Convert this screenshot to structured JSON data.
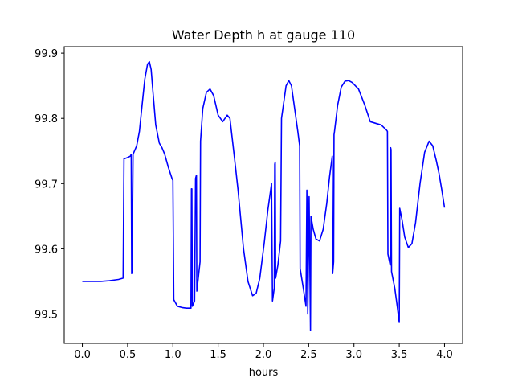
{
  "chart_data": {
    "type": "line",
    "title": "Water Depth h at gauge 110",
    "xlabel": "hours",
    "ylabel": "",
    "xlim": [
      -0.2,
      4.2
    ],
    "ylim": [
      99.455,
      99.91
    ],
    "grid": false,
    "xticks": [
      {
        "value": 0.0,
        "label": "0.0"
      },
      {
        "value": 0.5,
        "label": "0.5"
      },
      {
        "value": 1.0,
        "label": "1.0"
      },
      {
        "value": 1.5,
        "label": "1.5"
      },
      {
        "value": 2.0,
        "label": "2.0"
      },
      {
        "value": 2.5,
        "label": "2.5"
      },
      {
        "value": 3.0,
        "label": "3.0"
      },
      {
        "value": 3.5,
        "label": "3.5"
      },
      {
        "value": 4.0,
        "label": "4.0"
      }
    ],
    "yticks": [
      {
        "value": 99.5,
        "label": "99.5"
      },
      {
        "value": 99.6,
        "label": "99.6"
      },
      {
        "value": 99.7,
        "label": "99.7"
      },
      {
        "value": 99.8,
        "label": "99.8"
      },
      {
        "value": 99.9,
        "label": "99.9"
      }
    ],
    "series": [
      {
        "color": "#0000ff",
        "points": [
          [
            0.0,
            99.55
          ],
          [
            0.1,
            99.55
          ],
          [
            0.2,
            99.55
          ],
          [
            0.3,
            99.551
          ],
          [
            0.4,
            99.553
          ],
          [
            0.45,
            99.555
          ],
          [
            0.46,
            99.738
          ],
          [
            0.5,
            99.74
          ],
          [
            0.53,
            99.742
          ],
          [
            0.54,
            99.745
          ],
          [
            0.545,
            99.562
          ],
          [
            0.55,
            99.565
          ],
          [
            0.56,
            99.745
          ],
          [
            0.6,
            99.758
          ],
          [
            0.63,
            99.78
          ],
          [
            0.66,
            99.82
          ],
          [
            0.69,
            99.86
          ],
          [
            0.72,
            99.883
          ],
          [
            0.74,
            99.887
          ],
          [
            0.76,
            99.875
          ],
          [
            0.78,
            99.84
          ],
          [
            0.81,
            99.79
          ],
          [
            0.85,
            99.762
          ],
          [
            0.88,
            99.755
          ],
          [
            0.91,
            99.745
          ],
          [
            0.95,
            99.725
          ],
          [
            0.99,
            99.708
          ],
          [
            1.0,
            99.705
          ],
          [
            1.01,
            99.522
          ],
          [
            1.05,
            99.512
          ],
          [
            1.1,
            99.51
          ],
          [
            1.15,
            99.509
          ],
          [
            1.2,
            99.509
          ],
          [
            1.205,
            99.692
          ],
          [
            1.21,
            99.692
          ],
          [
            1.215,
            99.512
          ],
          [
            1.24,
            99.52
          ],
          [
            1.25,
            99.708
          ],
          [
            1.26,
            99.713
          ],
          [
            1.265,
            99.535
          ],
          [
            1.3,
            99.58
          ],
          [
            1.305,
            99.765
          ],
          [
            1.33,
            99.815
          ],
          [
            1.37,
            99.84
          ],
          [
            1.41,
            99.845
          ],
          [
            1.45,
            99.835
          ],
          [
            1.5,
            99.805
          ],
          [
            1.55,
            99.795
          ],
          [
            1.6,
            99.805
          ],
          [
            1.63,
            99.8
          ],
          [
            1.68,
            99.74
          ],
          [
            1.72,
            99.69
          ],
          [
            1.78,
            99.6
          ],
          [
            1.83,
            99.55
          ],
          [
            1.88,
            99.528
          ],
          [
            1.92,
            99.532
          ],
          [
            1.96,
            99.555
          ],
          [
            2.01,
            99.61
          ],
          [
            2.05,
            99.66
          ],
          [
            2.09,
            99.7
          ],
          [
            2.1,
            99.52
          ],
          [
            2.12,
            99.54
          ],
          [
            2.125,
            99.73
          ],
          [
            2.13,
            99.733
          ],
          [
            2.135,
            99.555
          ],
          [
            2.16,
            99.575
          ],
          [
            2.19,
            99.612
          ],
          [
            2.2,
            99.8
          ],
          [
            2.22,
            99.82
          ],
          [
            2.25,
            99.85
          ],
          [
            2.28,
            99.858
          ],
          [
            2.31,
            99.85
          ],
          [
            2.34,
            99.82
          ],
          [
            2.38,
            99.78
          ],
          [
            2.4,
            99.758
          ],
          [
            2.405,
            99.57
          ],
          [
            2.44,
            99.54
          ],
          [
            2.47,
            99.512
          ],
          [
            2.48,
            99.69
          ],
          [
            2.49,
            99.5
          ],
          [
            2.505,
            99.68
          ],
          [
            2.52,
            99.475
          ],
          [
            2.525,
            99.65
          ],
          [
            2.55,
            99.63
          ],
          [
            2.58,
            99.615
          ],
          [
            2.62,
            99.612
          ],
          [
            2.66,
            99.63
          ],
          [
            2.7,
            99.67
          ],
          [
            2.73,
            99.71
          ],
          [
            2.76,
            99.742
          ],
          [
            2.765,
            99.562
          ],
          [
            2.775,
            99.58
          ],
          [
            2.78,
            99.775
          ],
          [
            2.785,
            99.78
          ],
          [
            2.82,
            99.82
          ],
          [
            2.86,
            99.848
          ],
          [
            2.9,
            99.857
          ],
          [
            2.94,
            99.858
          ],
          [
            2.98,
            99.855
          ],
          [
            3.05,
            99.845
          ],
          [
            3.12,
            99.82
          ],
          [
            3.18,
            99.795
          ],
          [
            3.25,
            99.792
          ],
          [
            3.3,
            99.79
          ],
          [
            3.36,
            99.782
          ],
          [
            3.37,
            99.78
          ],
          [
            3.375,
            99.592
          ],
          [
            3.4,
            99.575
          ],
          [
            3.405,
            99.755
          ],
          [
            3.41,
            99.752
          ],
          [
            3.415,
            99.565
          ],
          [
            3.45,
            99.54
          ],
          [
            3.48,
            99.51
          ],
          [
            3.5,
            99.487
          ],
          [
            3.505,
            99.662
          ],
          [
            3.53,
            99.645
          ],
          [
            3.56,
            99.618
          ],
          [
            3.6,
            99.602
          ],
          [
            3.64,
            99.608
          ],
          [
            3.68,
            99.64
          ],
          [
            3.73,
            99.7
          ],
          [
            3.78,
            99.748
          ],
          [
            3.83,
            99.765
          ],
          [
            3.87,
            99.758
          ],
          [
            3.91,
            99.735
          ],
          [
            3.94,
            99.715
          ],
          [
            3.97,
            99.69
          ],
          [
            4.0,
            99.663
          ]
        ]
      }
    ]
  }
}
